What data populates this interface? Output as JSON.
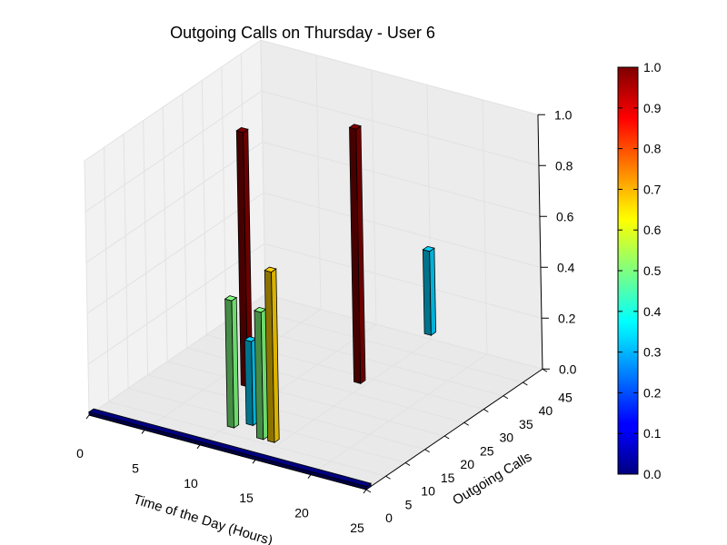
{
  "chart_data": {
    "type": "bar3d",
    "title": "Outgoing Calls on Thursday - User 6",
    "xlabel": "Time of the Day (Hours)",
    "ylabel": "Outgoing Calls",
    "xlim": [
      0,
      25
    ],
    "ylim": [
      0,
      45
    ],
    "zlim": [
      0,
      1
    ],
    "xticks": [
      "0",
      "5",
      "10",
      "15",
      "20",
      "25"
    ],
    "yticks": [
      "0",
      "5",
      "10",
      "15",
      "20",
      "25",
      "30",
      "35",
      "40",
      "45"
    ],
    "zticks": [
      "0.0",
      "0.2",
      "0.4",
      "0.6",
      "0.8",
      "1.0"
    ],
    "grid": true,
    "colormap": "jet",
    "colorbar": {
      "min": 0,
      "max": 1,
      "ticks": [
        "0.0",
        "0.1",
        "0.2",
        "0.3",
        "0.4",
        "0.5",
        "0.6",
        "0.7",
        "0.8",
        "0.9",
        "1.0"
      ]
    },
    "bars": [
      {
        "x": 7,
        "y": 19,
        "value": 1.0
      },
      {
        "x": 10,
        "y": 7,
        "value": 0.5
      },
      {
        "x": 11,
        "y": 9,
        "value": 0.33
      },
      {
        "x": 13,
        "y": 6,
        "value": 0.5
      },
      {
        "x": 14,
        "y": 6,
        "value": 0.67
      },
      {
        "x": 14,
        "y": 28,
        "value": 1.0
      },
      {
        "x": 14,
        "y": 46,
        "value": 0.33
      }
    ],
    "baseline_row": {
      "y": 0,
      "x_start": 0,
      "x_end": 24,
      "value": 0
    }
  }
}
